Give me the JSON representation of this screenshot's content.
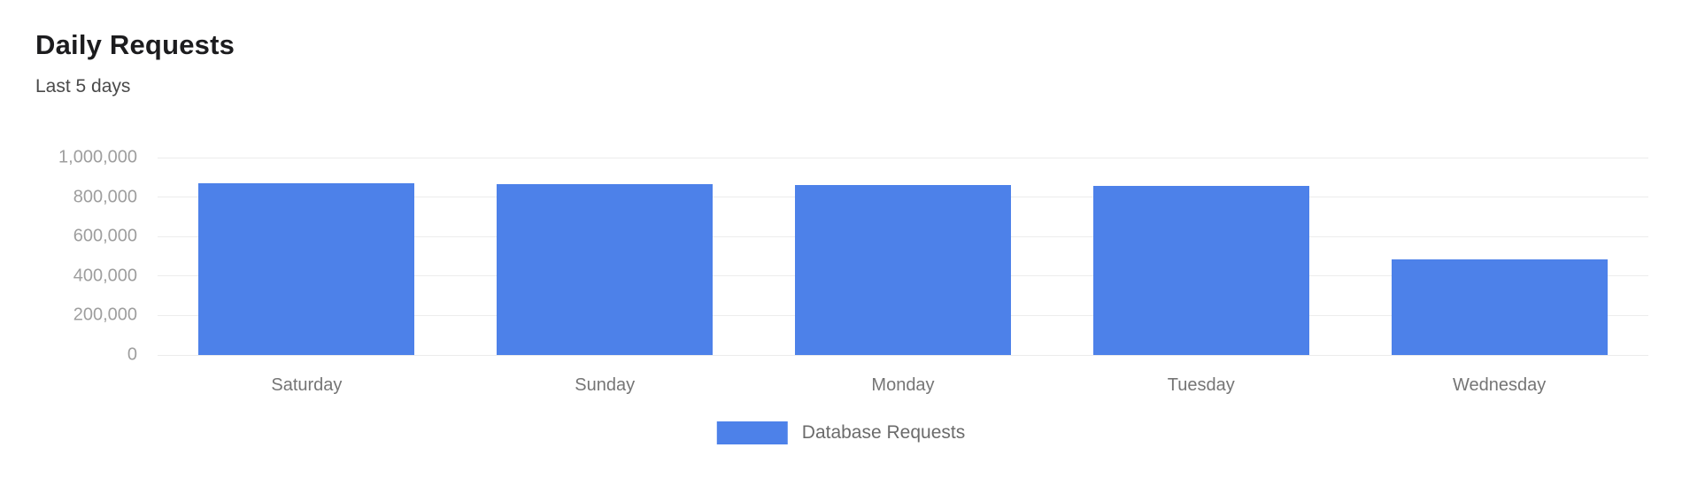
{
  "header": {
    "title": "Daily Requests",
    "subtitle": "Last 5 days"
  },
  "chart_data": {
    "type": "bar",
    "title": "Daily Requests",
    "subtitle": "Last 5 days",
    "categories": [
      "Saturday",
      "Sunday",
      "Monday",
      "Tuesday",
      "Wednesday"
    ],
    "series": [
      {
        "name": "Database Requests",
        "values": [
          872000,
          867000,
          861000,
          856000,
          483000
        ],
        "color": "#4d81e9"
      }
    ],
    "xlabel": "",
    "ylabel": "",
    "ylim": [
      0,
      1000000
    ],
    "yticks": [
      {
        "value": 0,
        "label": "0"
      },
      {
        "value": 200000,
        "label": "200,000"
      },
      {
        "value": 400000,
        "label": "400,000"
      },
      {
        "value": 600000,
        "label": "600,000"
      },
      {
        "value": 800000,
        "label": "800,000"
      },
      {
        "value": 1000000,
        "label": "1,000,000"
      }
    ],
    "grid": "horizontal",
    "legend_position": "bottom"
  },
  "colors": {
    "background": "#ffffff",
    "bar": "#4d81e9",
    "gridline": "#ececec",
    "title_text": "#1c1c1e",
    "subtitle_text": "#4a4a4a",
    "ytick_text": "#9e9e9e",
    "xtick_text": "#757575",
    "legend_text": "#6b6b6b"
  }
}
